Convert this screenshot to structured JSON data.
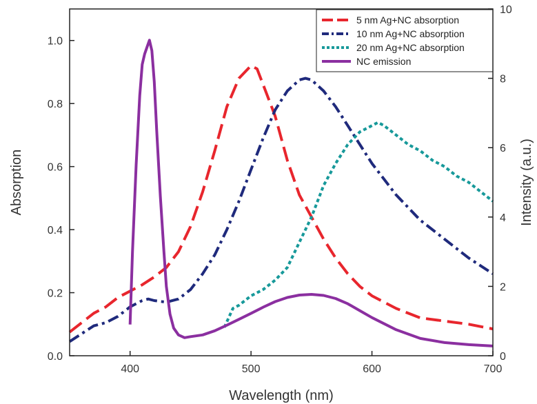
{
  "chart_data": {
    "type": "line",
    "xlabel": "Wavelength (nm)",
    "ylabel_left": "Absorption",
    "ylabel_right": "Intensity (a.u.)",
    "xlim": [
      350,
      700
    ],
    "ylim_left": [
      0,
      1.1
    ],
    "ylim_right": [
      0,
      10
    ],
    "x_ticks": [
      "400",
      "500",
      "600",
      "700"
    ],
    "y_left_ticks": [
      "0.0",
      "0.2",
      "0.4",
      "0.6",
      "0.8",
      "1.0"
    ],
    "y_right_ticks": [
      "0",
      "2",
      "4",
      "6",
      "8",
      "10"
    ],
    "grid": false,
    "legend_position": "top-right",
    "series": [
      {
        "name": "5   nm Ag+NC absorption",
        "axis": "left",
        "color": "#e8262d",
        "style": "dash",
        "x": [
          350,
          360,
          370,
          380,
          390,
          400,
          410,
          420,
          430,
          440,
          450,
          460,
          470,
          480,
          490,
          500,
          505,
          510,
          520,
          530,
          540,
          550,
          560,
          570,
          580,
          590,
          600,
          620,
          640,
          660,
          680,
          700
        ],
        "y": [
          0.075,
          0.105,
          0.135,
          0.155,
          0.185,
          0.205,
          0.225,
          0.25,
          0.28,
          0.33,
          0.41,
          0.52,
          0.65,
          0.79,
          0.88,
          0.92,
          0.91,
          0.86,
          0.76,
          0.62,
          0.51,
          0.44,
          0.37,
          0.31,
          0.26,
          0.22,
          0.19,
          0.15,
          0.12,
          0.11,
          0.1,
          0.085
        ]
      },
      {
        "name": "10 nm Ag+NC absorption",
        "axis": "left",
        "color": "#1f2a7c",
        "style": "dashdot",
        "x": [
          350,
          360,
          370,
          380,
          390,
          400,
          410,
          415,
          420,
          430,
          440,
          450,
          460,
          470,
          480,
          490,
          500,
          510,
          520,
          530,
          540,
          545,
          550,
          560,
          570,
          580,
          590,
          600,
          620,
          640,
          660,
          680,
          700
        ],
        "y": [
          0.045,
          0.07,
          0.095,
          0.105,
          0.125,
          0.155,
          0.175,
          0.18,
          0.175,
          0.17,
          0.18,
          0.21,
          0.26,
          0.32,
          0.4,
          0.49,
          0.59,
          0.69,
          0.78,
          0.84,
          0.875,
          0.88,
          0.875,
          0.84,
          0.79,
          0.73,
          0.67,
          0.61,
          0.51,
          0.43,
          0.37,
          0.31,
          0.26
        ]
      },
      {
        "name": "20 nm Ag+NC absorption",
        "axis": "left",
        "color": "#17999a",
        "style": "dot",
        "x": [
          478,
          485,
          490,
          500,
          510,
          520,
          530,
          540,
          550,
          560,
          570,
          580,
          590,
          600,
          605,
          610,
          620,
          630,
          640,
          650,
          660,
          670,
          680,
          690,
          700
        ],
        "y": [
          0.09,
          0.15,
          0.16,
          0.19,
          0.21,
          0.24,
          0.28,
          0.36,
          0.44,
          0.54,
          0.61,
          0.67,
          0.71,
          0.73,
          0.74,
          0.73,
          0.7,
          0.67,
          0.65,
          0.62,
          0.6,
          0.57,
          0.55,
          0.52,
          0.49
        ]
      },
      {
        "name": "NC emission",
        "axis": "right",
        "color": "#8b2fa0",
        "style": "solid",
        "x": [
          400,
          402,
          405,
          408,
          410,
          412,
          414,
          416,
          418,
          420,
          422,
          425,
          428,
          430,
          433,
          436,
          440,
          445,
          450,
          460,
          470,
          480,
          490,
          500,
          510,
          520,
          530,
          540,
          550,
          560,
          570,
          580,
          590,
          600,
          620,
          640,
          660,
          680,
          700
        ],
        "y": [
          0.9,
          3.0,
          5.5,
          7.5,
          8.4,
          8.7,
          8.9,
          9.1,
          8.8,
          7.9,
          6.5,
          4.6,
          3.0,
          2.0,
          1.2,
          0.8,
          0.6,
          0.52,
          0.55,
          0.6,
          0.72,
          0.88,
          1.05,
          1.22,
          1.4,
          1.56,
          1.68,
          1.75,
          1.77,
          1.74,
          1.65,
          1.5,
          1.3,
          1.1,
          0.75,
          0.5,
          0.38,
          0.32,
          0.28
        ]
      }
    ]
  }
}
